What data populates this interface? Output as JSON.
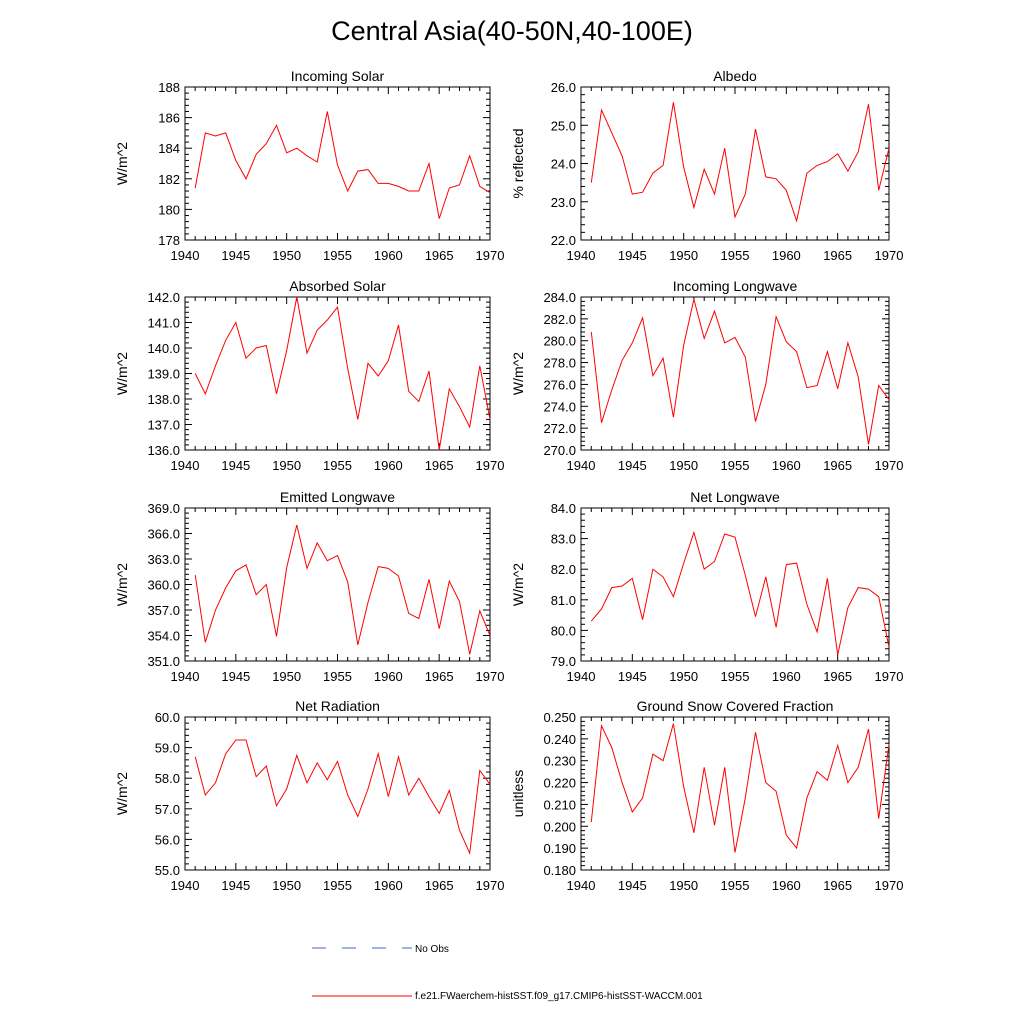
{
  "title": "Central Asia(40-50N,40-100E)",
  "legend": {
    "no_obs_label": "No Obs",
    "model_label": "f.e21.FWaerchem-histSST.f09_g17.CMIP6-histSST-WACCM.001",
    "no_obs_color": "#4466cc",
    "model_color": "#ff0000"
  },
  "chart_data": [
    {
      "type": "line",
      "title": "Incoming Solar",
      "ylabel": "W/m^2",
      "xlim": [
        1940,
        1970
      ],
      "ylim": [
        178,
        188
      ],
      "xticks": [
        1940,
        1945,
        1950,
        1955,
        1960,
        1965,
        1970
      ],
      "yticks": [
        "178",
        "180",
        "182",
        "184",
        "186",
        "188"
      ],
      "x": [
        1941,
        1942,
        1943,
        1944,
        1945,
        1946,
        1947,
        1948,
        1949,
        1950,
        1951,
        1952,
        1953,
        1954,
        1955,
        1956,
        1957,
        1958,
        1959,
        1960,
        1961,
        1962,
        1963,
        1964,
        1965,
        1966,
        1967,
        1968,
        1969,
        1970
      ],
      "values": [
        181.4,
        185.0,
        184.8,
        185.0,
        183.2,
        182.0,
        183.6,
        184.3,
        185.5,
        183.7,
        184.0,
        183.5,
        183.1,
        186.4,
        182.9,
        181.2,
        182.5,
        182.6,
        181.7,
        181.7,
        181.5,
        181.2,
        181.2,
        183.0,
        179.4,
        181.4,
        181.6,
        183.5,
        181.5,
        181.1
      ]
    },
    {
      "type": "line",
      "title": "Albedo",
      "ylabel": "% reflected",
      "xlim": [
        1940,
        1970
      ],
      "ylim": [
        22.0,
        26.0
      ],
      "xticks": [
        1940,
        1945,
        1950,
        1955,
        1960,
        1965,
        1970
      ],
      "yticks": [
        "22.0",
        "23.0",
        "24.0",
        "25.0",
        "26.0"
      ],
      "x": [
        1941,
        1942,
        1943,
        1944,
        1945,
        1946,
        1947,
        1948,
        1949,
        1950,
        1951,
        1952,
        1953,
        1954,
        1955,
        1956,
        1957,
        1958,
        1959,
        1960,
        1961,
        1962,
        1963,
        1964,
        1965,
        1966,
        1967,
        1968,
        1969,
        1970
      ],
      "values": [
        23.5,
        25.4,
        24.8,
        24.2,
        23.2,
        23.25,
        23.75,
        23.95,
        25.6,
        23.9,
        22.85,
        23.85,
        23.2,
        24.4,
        22.6,
        23.2,
        24.9,
        23.65,
        23.6,
        23.3,
        22.5,
        23.75,
        23.95,
        24.05,
        24.25,
        23.8,
        24.3,
        25.55,
        23.3,
        24.4
      ]
    },
    {
      "type": "line",
      "title": "Absorbed Solar",
      "ylabel": "W/m^2",
      "xlim": [
        1940,
        1970
      ],
      "ylim": [
        136.0,
        142.0
      ],
      "xticks": [
        1940,
        1945,
        1950,
        1955,
        1960,
        1965,
        1970
      ],
      "yticks": [
        "136.0",
        "137.0",
        "138.0",
        "139.0",
        "140.0",
        "141.0",
        "142.0"
      ],
      "x": [
        1941,
        1942,
        1943,
        1944,
        1945,
        1946,
        1947,
        1948,
        1949,
        1950,
        1951,
        1952,
        1953,
        1954,
        1955,
        1956,
        1957,
        1958,
        1959,
        1960,
        1961,
        1962,
        1963,
        1964,
        1965,
        1966,
        1967,
        1968,
        1969,
        1970
      ],
      "values": [
        139.0,
        138.2,
        139.3,
        140.3,
        141.0,
        139.6,
        140.0,
        140.1,
        138.2,
        139.9,
        142.0,
        139.8,
        140.7,
        141.1,
        141.6,
        139.2,
        137.2,
        139.4,
        138.9,
        139.5,
        140.9,
        138.3,
        137.9,
        139.1,
        136.0,
        138.4,
        137.7,
        136.9,
        139.3,
        137.2
      ]
    },
    {
      "type": "line",
      "title": "Incoming Longwave",
      "ylabel": "W/m^2",
      "xlim": [
        1940,
        1970
      ],
      "ylim": [
        270.0,
        284.0
      ],
      "xticks": [
        1940,
        1945,
        1950,
        1955,
        1960,
        1965,
        1970
      ],
      "yticks": [
        "270.0",
        "272.0",
        "274.0",
        "276.0",
        "278.0",
        "280.0",
        "282.0",
        "284.0"
      ],
      "x": [
        1941,
        1942,
        1943,
        1944,
        1945,
        1946,
        1947,
        1948,
        1949,
        1950,
        1951,
        1952,
        1953,
        1954,
        1955,
        1956,
        1957,
        1958,
        1959,
        1960,
        1961,
        1962,
        1963,
        1964,
        1965,
        1966,
        1967,
        1968,
        1969,
        1970
      ],
      "values": [
        280.8,
        272.5,
        275.5,
        278.2,
        279.8,
        282.1,
        276.8,
        278.4,
        273.0,
        279.6,
        283.8,
        280.2,
        282.7,
        279.8,
        280.3,
        278.5,
        272.6,
        276.0,
        282.2,
        279.9,
        279.0,
        275.7,
        275.9,
        279.0,
        275.6,
        279.8,
        276.7,
        270.5,
        275.9,
        274.6
      ]
    },
    {
      "type": "line",
      "title": "Emitted Longwave",
      "ylabel": "W/m^2",
      "xlim": [
        1940,
        1970
      ],
      "ylim": [
        351.0,
        369.0
      ],
      "xticks": [
        1940,
        1945,
        1950,
        1955,
        1960,
        1965,
        1970
      ],
      "yticks": [
        "351.0",
        "354.0",
        "357.0",
        "360.0",
        "363.0",
        "366.0",
        "369.0"
      ],
      "x": [
        1941,
        1942,
        1943,
        1944,
        1945,
        1946,
        1947,
        1948,
        1949,
        1950,
        1951,
        1952,
        1953,
        1954,
        1955,
        1956,
        1957,
        1958,
        1959,
        1960,
        1961,
        1962,
        1963,
        1964,
        1965,
        1966,
        1967,
        1968,
        1969,
        1970
      ],
      "values": [
        361.1,
        353.2,
        357.0,
        359.6,
        361.6,
        362.3,
        358.8,
        360.0,
        353.9,
        362.0,
        367.0,
        361.9,
        364.9,
        362.8,
        363.4,
        360.3,
        352.9,
        357.9,
        362.1,
        361.9,
        361.0,
        356.6,
        356.0,
        360.6,
        354.8,
        360.4,
        358.0,
        351.8,
        356.9,
        354.0
      ]
    },
    {
      "type": "line",
      "title": "Net Longwave",
      "ylabel": "W/m^2",
      "xlim": [
        1940,
        1970
      ],
      "ylim": [
        79.0,
        84.0
      ],
      "xticks": [
        1940,
        1945,
        1950,
        1955,
        1960,
        1965,
        1970
      ],
      "yticks": [
        "79.0",
        "80.0",
        "81.0",
        "82.0",
        "83.0",
        "84.0"
      ],
      "x": [
        1941,
        1942,
        1943,
        1944,
        1945,
        1946,
        1947,
        1948,
        1949,
        1950,
        1951,
        1952,
        1953,
        1954,
        1955,
        1956,
        1957,
        1958,
        1959,
        1960,
        1961,
        1962,
        1963,
        1964,
        1965,
        1966,
        1967,
        1968,
        1969,
        1970
      ],
      "values": [
        80.3,
        80.7,
        81.4,
        81.45,
        81.7,
        80.35,
        82.0,
        81.75,
        81.1,
        82.2,
        83.2,
        82.0,
        82.25,
        83.15,
        83.05,
        81.8,
        80.45,
        81.75,
        80.1,
        82.15,
        82.2,
        80.85,
        79.95,
        81.7,
        79.2,
        80.75,
        81.4,
        81.35,
        81.1,
        79.45
      ]
    },
    {
      "type": "line",
      "title": "Net Radiation",
      "ylabel": "W/m^2",
      "xlim": [
        1940,
        1970
      ],
      "ylim": [
        55.0,
        60.0
      ],
      "xticks": [
        1940,
        1945,
        1950,
        1955,
        1960,
        1965,
        1970
      ],
      "yticks": [
        "55.0",
        "56.0",
        "57.0",
        "58.0",
        "59.0",
        "60.0"
      ],
      "x": [
        1941,
        1942,
        1943,
        1944,
        1945,
        1946,
        1947,
        1948,
        1949,
        1950,
        1951,
        1952,
        1953,
        1954,
        1955,
        1956,
        1957,
        1958,
        1959,
        1960,
        1961,
        1962,
        1963,
        1964,
        1965,
        1966,
        1967,
        1968,
        1969,
        1970
      ],
      "values": [
        58.7,
        57.45,
        57.85,
        58.8,
        59.25,
        59.25,
        58.05,
        58.4,
        57.1,
        57.65,
        58.75,
        57.85,
        58.5,
        57.95,
        58.55,
        57.45,
        56.75,
        57.65,
        58.8,
        57.4,
        58.7,
        57.45,
        58.0,
        57.4,
        56.85,
        57.6,
        56.3,
        55.55,
        58.25,
        57.8
      ]
    },
    {
      "type": "line",
      "title": "Ground Snow Covered Fraction",
      "ylabel": "unitless",
      "xlim": [
        1940,
        1970
      ],
      "ylim": [
        0.18,
        0.25
      ],
      "xticks": [
        1940,
        1945,
        1950,
        1955,
        1960,
        1965,
        1970
      ],
      "yticks": [
        "0.180",
        "0.190",
        "0.200",
        "0.210",
        "0.220",
        "0.230",
        "0.240",
        "0.250"
      ],
      "x": [
        1941,
        1942,
        1943,
        1944,
        1945,
        1946,
        1947,
        1948,
        1949,
        1950,
        1951,
        1952,
        1953,
        1954,
        1955,
        1956,
        1957,
        1958,
        1959,
        1960,
        1961,
        1962,
        1963,
        1964,
        1965,
        1966,
        1967,
        1968,
        1969,
        1970
      ],
      "values": [
        0.202,
        0.246,
        0.236,
        0.22,
        0.2065,
        0.213,
        0.233,
        0.23,
        0.247,
        0.218,
        0.197,
        0.227,
        0.2005,
        0.227,
        0.188,
        0.213,
        0.243,
        0.22,
        0.216,
        0.196,
        0.19,
        0.213,
        0.225,
        0.221,
        0.237,
        0.22,
        0.227,
        0.2445,
        0.2035,
        0.2375
      ]
    }
  ]
}
